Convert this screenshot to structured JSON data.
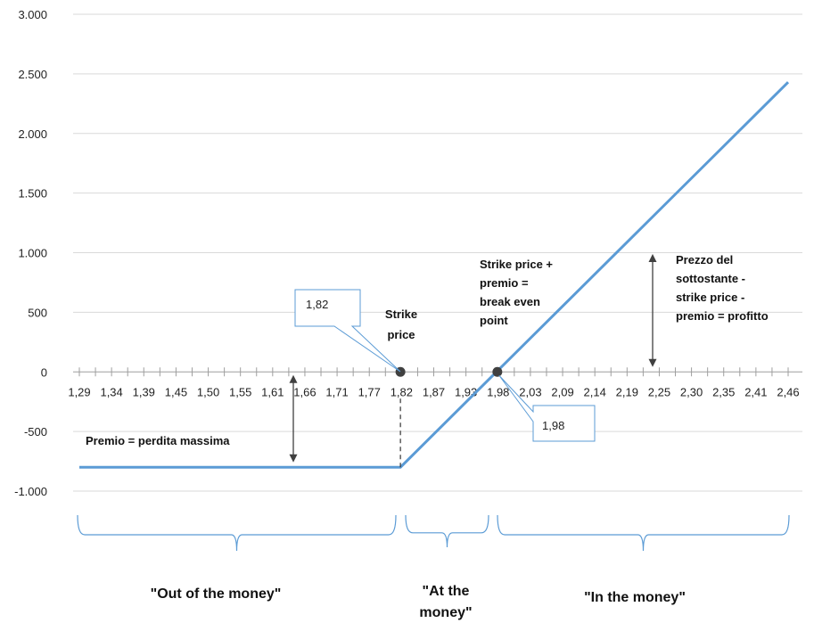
{
  "chart_data": {
    "type": "line",
    "title": "",
    "xlabel": "",
    "ylabel": "",
    "ylim": [
      -1000,
      3000
    ],
    "yticks": [
      3000,
      2500,
      2000,
      1500,
      1000,
      500,
      0,
      -500,
      -1000
    ],
    "ytick_labels": [
      "3.000",
      "2.500",
      "2.000",
      "1.500",
      "1.000",
      "500",
      "0",
      "-500",
      "-1.000"
    ],
    "categories": [
      "1,29",
      "1,34",
      "1,39",
      "1,45",
      "1,50",
      "1,55",
      "1,61",
      "1,66",
      "1,71",
      "1,77",
      "1,82",
      "1,87",
      "1,93",
      "1,98",
      "2,03",
      "2,09",
      "2,14",
      "2,19",
      "2,25",
      "2,30",
      "2,35",
      "2,41",
      "2,46"
    ],
    "grid": "horizontal",
    "series": [
      {
        "color": "#5b9bd5",
        "x": [
          1.29,
          1.82,
          2.46
        ],
        "y": [
          -800,
          -800,
          2430
        ]
      }
    ],
    "points": [
      {
        "x": 1.82,
        "y": 0,
        "callout": "1,82"
      },
      {
        "x": 1.98,
        "y": 0,
        "callout": "1,98"
      }
    ],
    "annotations": {
      "strike": [
        "Strike",
        "price"
      ],
      "breakeven": [
        "Strike price +",
        "premio =",
        "break even",
        "point"
      ],
      "profit": [
        "Prezzo del",
        "sottostante -",
        "strike price -",
        "premio = profitto"
      ],
      "premium": "Premio = perdita massima"
    },
    "regions": {
      "otm": "\"Out of the money\"",
      "atm": [
        "\"At the",
        "money\""
      ],
      "itm": "\"In the money\""
    },
    "colors": {
      "line": "#5b9bd5",
      "grid": "#d9d9d9",
      "brace": "#5b9bd5",
      "arrow": "#404040",
      "point": "#404040"
    }
  }
}
